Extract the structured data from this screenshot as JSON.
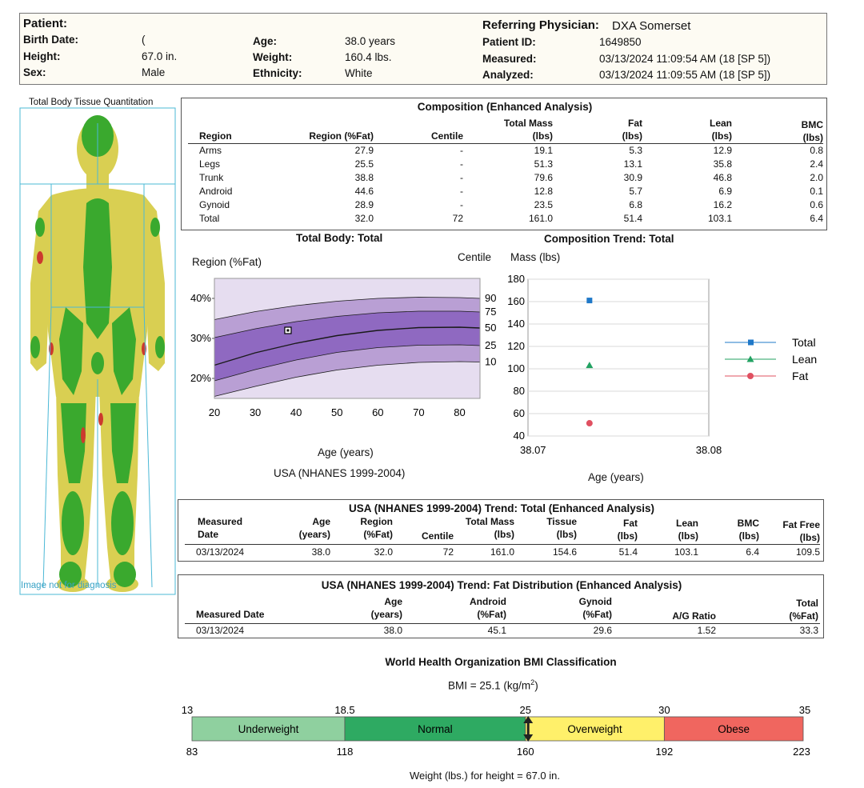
{
  "header": {
    "patient_label": "Patient:",
    "birth_date_label": "Birth Date:",
    "birth_date_value": "(",
    "height_label": "Height:",
    "height_value": "67.0 in.",
    "sex_label": "Sex:",
    "sex_value": "Male",
    "age_label": "Age:",
    "age_value": "38.0 years",
    "weight_label": "Weight:",
    "weight_value": "160.4 lbs.",
    "ethnicity_label": "Ethnicity:",
    "ethnicity_value": "White",
    "physician_label": "Referring Physician:",
    "physician_value": "DXA Somerset",
    "patient_id_label": "Patient ID:",
    "patient_id_value": "1649850",
    "measured_label": "Measured:",
    "measured_value": "03/13/2024  11:09:54 AM (18 [SP 5])",
    "analyzed_label": "Analyzed:",
    "analyzed_value": "03/13/2024  11:09:55 AM (18 [SP 5])"
  },
  "body_image": {
    "title": "Total Body Tissue Quantitation",
    "caption": "Image not for diagnosis"
  },
  "composition": {
    "title": "Composition (Enhanced Analysis)",
    "headers": {
      "region": "Region",
      "pctfat": "Region (%Fat)",
      "centile": "Centile",
      "mass_1": "Total Mass",
      "mass_2": "(lbs)",
      "fat_1": "Fat",
      "fat_2": "(lbs)",
      "lean_1": "Lean",
      "lean_2": "(lbs)",
      "bmc_1": "BMC",
      "bmc_2": "(lbs)"
    },
    "rows": [
      {
        "region": "Arms",
        "pctfat": "27.9",
        "centile": "-",
        "mass": "19.1",
        "fat": "5.3",
        "lean": "12.9",
        "bmc": "0.8"
      },
      {
        "region": "Legs",
        "pctfat": "25.5",
        "centile": "-",
        "mass": "51.3",
        "fat": "13.1",
        "lean": "35.8",
        "bmc": "2.4"
      },
      {
        "region": "Trunk",
        "pctfat": "38.8",
        "centile": "-",
        "mass": "79.6",
        "fat": "30.9",
        "lean": "46.8",
        "bmc": "2.0"
      },
      {
        "region": "Android",
        "pctfat": "44.6",
        "centile": "-",
        "mass": "12.8",
        "fat": "5.7",
        "lean": "6.9",
        "bmc": "0.1"
      },
      {
        "region": "Gynoid",
        "pctfat": "28.9",
        "centile": "-",
        "mass": "23.5",
        "fat": "6.8",
        "lean": "16.2",
        "bmc": "0.6"
      },
      {
        "region": "Total",
        "pctfat": "32.0",
        "centile": "72",
        "mass": "161.0",
        "fat": "51.4",
        "lean": "103.1",
        "bmc": "6.4"
      }
    ]
  },
  "chart_data": [
    {
      "type": "area",
      "title": "Total Body: Total",
      "ylabel": "Region (%Fat)",
      "y2label": "Centile",
      "xlabel": "Age (years)",
      "caption": "USA (NHANES 1999-2004)",
      "xlim": [
        20,
        85
      ],
      "ylim": [
        15,
        45
      ],
      "x_ticks": [
        20,
        30,
        40,
        50,
        60,
        70,
        80
      ],
      "y_ticks": [
        20,
        30,
        40
      ],
      "y_tick_labels": [
        "20%",
        "30%",
        "40%"
      ],
      "centile_labels": [
        "90",
        "75",
        "50",
        "25",
        "10"
      ],
      "centile_curves": [
        {
          "name": "90",
          "x": [
            20,
            30,
            40,
            50,
            60,
            70,
            80,
            85
          ],
          "y": [
            34.7,
            36.7,
            38.2,
            39.3,
            40.0,
            40.3,
            40.2,
            40.0
          ]
        },
        {
          "name": "75",
          "x": [
            20,
            30,
            40,
            50,
            60,
            70,
            80,
            85
          ],
          "y": [
            30.2,
            32.4,
            34.2,
            35.5,
            36.4,
            36.8,
            36.8,
            36.6
          ]
        },
        {
          "name": "50",
          "x": [
            20,
            30,
            40,
            50,
            60,
            70,
            80,
            85
          ],
          "y": [
            23.3,
            26.4,
            28.8,
            30.7,
            32.0,
            32.7,
            32.8,
            32.6
          ]
        },
        {
          "name": "25",
          "x": [
            20,
            30,
            40,
            50,
            60,
            70,
            80,
            85
          ],
          "y": [
            19.4,
            22.2,
            24.6,
            26.5,
            27.7,
            28.3,
            28.4,
            28.2
          ]
        },
        {
          "name": "10",
          "x": [
            20,
            30,
            40,
            50,
            60,
            70,
            80,
            85
          ],
          "y": [
            15.5,
            18.0,
            20.3,
            22.1,
            23.3,
            24.0,
            24.2,
            24.1
          ]
        }
      ],
      "patient_point": {
        "x": 38.0,
        "y": 32.0
      },
      "colors": {
        "band_outer": "#b99fd4",
        "band_inner": "#8f69c1",
        "background": "#e6ddf0",
        "curve": "#1a1a1a"
      }
    },
    {
      "type": "scatter",
      "title": "Composition Trend: Total",
      "ylabel": "Mass (lbs)",
      "xlabel": "Age (years)",
      "xlim": [
        38.07,
        38.08
      ],
      "x_tick_labels": [
        "38.07",
        "38.08"
      ],
      "ylim": [
        40,
        180
      ],
      "y_ticks": [
        40,
        60,
        80,
        100,
        120,
        140,
        160,
        180
      ],
      "grid": true,
      "legend": "right",
      "series": [
        {
          "name": "Total",
          "x": [
            38.0734
          ],
          "y": [
            161.0
          ],
          "color": "#1f78c8",
          "marker": "square"
        },
        {
          "name": "Lean",
          "x": [
            38.0734
          ],
          "y": [
            103.1
          ],
          "color": "#22a262",
          "marker": "triangle"
        },
        {
          "name": "Fat",
          "x": [
            38.0734
          ],
          "y": [
            51.4
          ],
          "color": "#e05061",
          "marker": "circle"
        }
      ]
    },
    {
      "type": "bar",
      "title": "World Health Organization BMI Classification",
      "subtitle_prefix": "BMI = 25.1 (kg/m",
      "subtitle_sup": "2",
      "subtitle_suffix": ")",
      "xlabel": "Weight (lbs.) for height = 67.0 in.",
      "bmi_range": [
        13,
        35
      ],
      "segments": [
        {
          "name": "Underweight",
          "from": 13,
          "to": 18.5,
          "color": "#8fd09f"
        },
        {
          "name": "Normal",
          "from": 18.5,
          "to": 25,
          "color": "#2eaa62"
        },
        {
          "name": "Overweight",
          "from": 25,
          "to": 30,
          "color": "#fff06a"
        },
        {
          "name": "Obese",
          "from": 30,
          "to": 35,
          "color": "#f0665f"
        }
      ],
      "bmi_ticks": [
        "13",
        "18.5",
        "25",
        "30",
        "35"
      ],
      "weight_ticks": [
        "83",
        "118",
        "160",
        "192",
        "223"
      ],
      "marker_bmi": 25.1
    }
  ],
  "trend_total": {
    "title": "USA (NHANES 1999-2004) Trend: Total (Enhanced Analysis)",
    "headers": {
      "date_1": "Measured",
      "date_2": "Date",
      "age_1": "Age",
      "age_2": "(years)",
      "region_1": "Region",
      "region_2": "(%Fat)",
      "centile": "Centile",
      "mass_1": "Total Mass",
      "mass_2": "(lbs)",
      "tissue_1": "Tissue",
      "tissue_2": "(lbs)",
      "fat_1": "Fat",
      "fat_2": "(lbs)",
      "lean_1": "Lean",
      "lean_2": "(lbs)",
      "bmc_1": "BMC",
      "bmc_2": "(lbs)",
      "ff_1": "Fat Free",
      "ff_2": "(lbs)"
    },
    "row": {
      "date": "03/13/2024",
      "age": "38.0",
      "region": "32.0",
      "centile": "72",
      "mass": "161.0",
      "tissue": "154.6",
      "fat": "51.4",
      "lean": "103.1",
      "bmc": "6.4",
      "ff": "109.5"
    }
  },
  "trend_fat": {
    "title": "USA (NHANES 1999-2004) Trend:  Fat Distribution (Enhanced Analysis)",
    "headers": {
      "date": "Measured Date",
      "age_1": "Age",
      "age_2": "(years)",
      "android_1": "Android",
      "android_2": "(%Fat)",
      "gynoid_1": "Gynoid",
      "gynoid_2": "(%Fat)",
      "ag": "A/G Ratio",
      "total_1": "Total",
      "total_2": "(%Fat)"
    },
    "row": {
      "date": "03/13/2024",
      "age": "38.0",
      "android": "45.1",
      "gynoid": "29.6",
      "ag": "1.52",
      "total": "33.3"
    }
  }
}
